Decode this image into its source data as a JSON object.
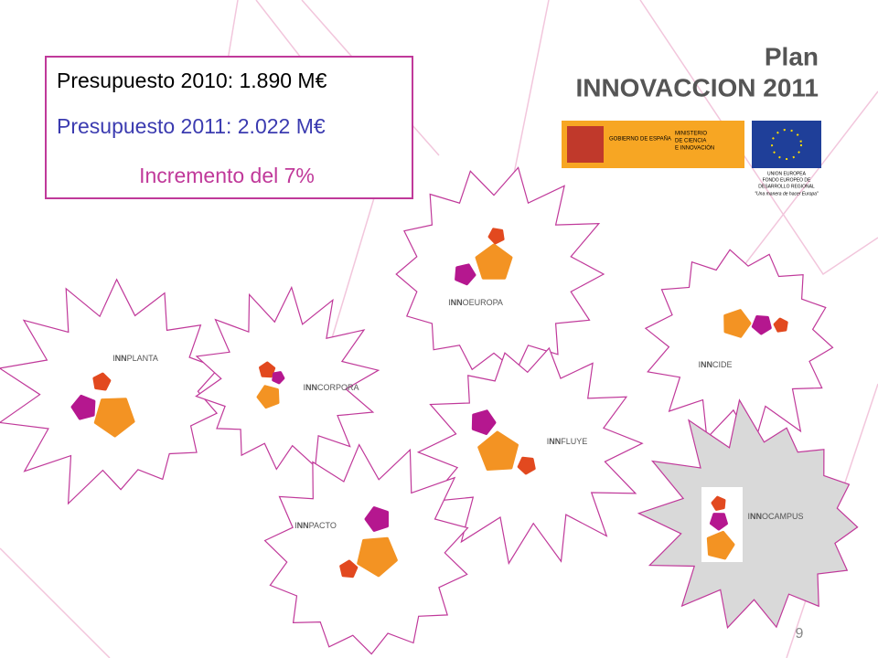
{
  "budget": {
    "line1": "Presupuesto 2010: 1.890 M€",
    "line2": "Presupuesto 2011: 2.022 M€",
    "line3": "Incremento del 7%"
  },
  "header": {
    "plan": "Plan",
    "title": "INNOVACCION 2011"
  },
  "logos": {
    "gobierno": "GOBIERNO DE ESPAÑA",
    "ministerio": [
      "MINISTERIO",
      "DE CIENCIA",
      "E INNOVACIÓN"
    ],
    "ue": [
      "UNION EUROPEA",
      "FONDO EUROPEO DE",
      "DESARROLLO REGIONAL"
    ],
    "motto": "\"Una manera de hacer Europa\""
  },
  "programs": [
    {
      "pre": "I",
      "bold": "NN",
      "post": "OEUROPA"
    },
    {
      "pre": "I",
      "bold": "NN",
      "post": "CIDE"
    },
    {
      "pre": "I",
      "bold": "NN",
      "post": "PLANTA"
    },
    {
      "pre": "I",
      "bold": "NN",
      "post": "CORPORA"
    },
    {
      "pre": "I",
      "bold": "NN",
      "post": "FLUYE"
    },
    {
      "pre": "I",
      "bold": "NN",
      "post": "OCAMPUS"
    },
    {
      "pre": "I",
      "bold": "NN",
      "post": "PACTO"
    }
  ],
  "page_number": "9"
}
